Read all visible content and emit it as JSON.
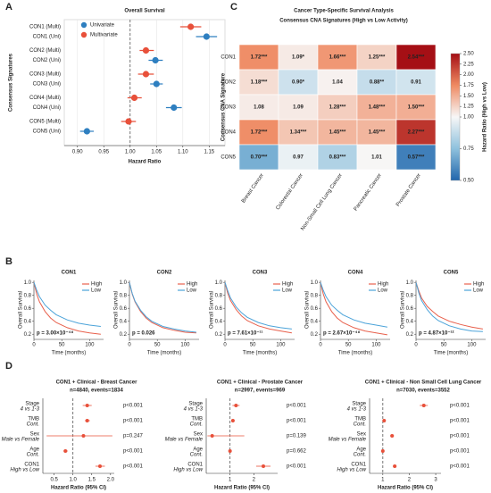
{
  "panel_labels": [
    "A",
    "B",
    "C",
    "D"
  ],
  "chart_data": [
    {
      "type": "forest",
      "title": "Overall Survival",
      "xlabel": "Hazard Ratio",
      "ylabel": "Consensus Signatures",
      "categories": [
        "CON1 (Multi)",
        "CON1 (Uni)",
        "CON2 (Multi)",
        "CON2 (Uni)",
        "CON3 (Multi)",
        "CON3 (Uni)",
        "CON4 (Multi)",
        "CON4 (Uni)",
        "CON5 (Multi)",
        "CON5 (Uni)"
      ],
      "series": [
        {
          "name": "Univariate",
          "color": "#2e7fc0",
          "values": [
            null,
            1.145,
            null,
            1.048,
            null,
            1.05,
            null,
            1.083,
            null,
            0.918
          ],
          "lower": [
            null,
            1.125,
            null,
            1.035,
            null,
            1.038,
            null,
            1.068,
            null,
            0.905
          ],
          "upper": [
            null,
            1.165,
            null,
            1.062,
            null,
            1.062,
            null,
            1.098,
            null,
            0.931
          ]
        },
        {
          "name": "Multivariate",
          "color": "#e8503a",
          "values": [
            1.115,
            null,
            1.03,
            null,
            1.03,
            null,
            1.008,
            null,
            0.997,
            null
          ],
          "lower": [
            1.095,
            null,
            1.018,
            null,
            1.015,
            null,
            0.995,
            null,
            0.983,
            null
          ],
          "upper": [
            1.135,
            null,
            1.045,
            null,
            1.045,
            null,
            1.022,
            null,
            1.011,
            null
          ]
        }
      ],
      "xlim": [
        0.875,
        1.18
      ],
      "xticks": [
        {
          "value": 0.9,
          "label": "0.90"
        },
        {
          "value": 0.95,
          "label": "0.95"
        },
        {
          "value": 1.0,
          "label": "1.00"
        },
        {
          "value": 1.05,
          "label": "1.05"
        },
        {
          "value": 1.1,
          "label": "1.10"
        },
        {
          "value": 1.15,
          "label": "1.15"
        }
      ],
      "refline": 1,
      "legend": "upper left"
    },
    {
      "type": "heatmap",
      "title": "Cancer Type-Specific Survival Analysis",
      "subtitle": "Consensus CNA Signatures (High vs Low Activity)",
      "ylabel": "Consensus CNA Signature",
      "colorbar_label": "Hazard Ratio (High vs Low)",
      "rows": [
        "CON1",
        "CON2",
        "CON3",
        "CON4",
        "CON5"
      ],
      "columns": [
        "Breast Cancer",
        "Colorectal Cancer",
        "Non-Small Cell Lung Cancer",
        "Pancreatic Cancer",
        "Prostate Cancer"
      ],
      "values": [
        [
          1.72,
          1.09,
          1.66,
          1.25,
          2.54
        ],
        [
          1.18,
          0.9,
          1.04,
          0.88,
          0.91
        ],
        [
          1.08,
          1.09,
          1.28,
          1.48,
          1.5
        ],
        [
          1.72,
          1.34,
          1.45,
          1.45,
          2.27
        ],
        [
          0.7,
          0.97,
          0.83,
          1.01,
          0.57
        ]
      ],
      "value_labels": [
        [
          "1.72***",
          "1.09*",
          "1.66***",
          "1.25***",
          "2.54***"
        ],
        [
          "1.18***",
          "0.90*",
          "1.04",
          "0.88**",
          "0.91"
        ],
        [
          "1.08",
          "1.09",
          "1.28***",
          "1.48***",
          "1.50***"
        ],
        [
          "1.72***",
          "1.34***",
          "1.45***",
          "1.45***",
          "2.27***"
        ],
        [
          "0.70***",
          "0.97",
          "0.83***",
          "1.01",
          "0.57***"
        ]
      ],
      "clim": [
        0.5,
        2.5
      ],
      "vcenter": 1,
      "colors": [
        "#2166ac",
        "#8ec1dd",
        "#f7f7f7",
        "#ef8a62",
        "#a50f15"
      ],
      "cticks": [
        {
          "value": 0.5,
          "label": "0.50"
        },
        {
          "value": 0.75,
          "label": "0.75"
        },
        {
          "value": 1.0,
          "label": "1.00"
        },
        {
          "value": 1.25,
          "label": "1.25"
        },
        {
          "value": 1.5,
          "label": "1.50"
        },
        {
          "value": 1.75,
          "label": "1.75"
        },
        {
          "value": 2.0,
          "label": "2.00"
        },
        {
          "value": 2.25,
          "label": "2.25"
        },
        {
          "value": 2.5,
          "label": "2.50"
        }
      ]
    },
    {
      "type": "km",
      "title": "CON1",
      "xlabel": "Time (months)",
      "ylabel": "Overall Survival",
      "annotation": "p = 3.00×10⁻⁴⁸",
      "x": [
        0,
        5,
        10,
        20,
        30,
        40,
        60,
        80,
        100,
        120
      ],
      "series": [
        {
          "name": "High",
          "color": "#e8604c",
          "values": [
            1,
            0.82,
            0.7,
            0.55,
            0.45,
            0.38,
            0.3,
            0.25,
            0.22,
            0.2
          ]
        },
        {
          "name": "Low",
          "color": "#4ba3d9",
          "values": [
            1,
            0.88,
            0.78,
            0.65,
            0.57,
            0.5,
            0.42,
            0.37,
            0.34,
            0.32
          ]
        }
      ],
      "xlim": [
        0,
        125
      ],
      "ylim": [
        0.12,
        1.03
      ],
      "xticks": [
        0,
        50,
        100
      ],
      "yticks": [
        0.2,
        0.4,
        0.6,
        0.8,
        {
          "value": 1,
          "label": "1.0"
        }
      ]
    },
    {
      "type": "km",
      "title": "CON2",
      "xlabel": "Time (months)",
      "ylabel": "Overall Survival",
      "annotation": "p = 0.026",
      "x": [
        0,
        5,
        10,
        20,
        30,
        40,
        60,
        80,
        100,
        120
      ],
      "series": [
        {
          "name": "High",
          "color": "#e8604c",
          "values": [
            1,
            0.82,
            0.7,
            0.55,
            0.45,
            0.38,
            0.3,
            0.26,
            0.23,
            0.22
          ]
        },
        {
          "name": "Low",
          "color": "#4ba3d9",
          "values": [
            1,
            0.83,
            0.71,
            0.57,
            0.47,
            0.4,
            0.32,
            0.28,
            0.25,
            0.23
          ]
        }
      ],
      "xlim": [
        0,
        125
      ],
      "ylim": [
        0.12,
        1.03
      ],
      "xticks": [
        0,
        50,
        100
      ],
      "yticks": [
        0.2,
        0.4,
        0.6,
        0.8,
        {
          "value": 1,
          "label": "1.0"
        }
      ]
    },
    {
      "type": "km",
      "title": "CON3",
      "xlabel": "Time (months)",
      "ylabel": "Overall Survival",
      "annotation": "p = 7.61×10⁻¹¹",
      "x": [
        0,
        5,
        10,
        20,
        30,
        40,
        60,
        80,
        100,
        120
      ],
      "series": [
        {
          "name": "High",
          "color": "#e8604c",
          "values": [
            1,
            0.83,
            0.72,
            0.58,
            0.48,
            0.41,
            0.33,
            0.28,
            0.25,
            0.22
          ]
        },
        {
          "name": "Low",
          "color": "#4ba3d9",
          "values": [
            1,
            0.87,
            0.76,
            0.62,
            0.53,
            0.46,
            0.38,
            0.33,
            0.3,
            0.28
          ]
        }
      ],
      "xlim": [
        0,
        125
      ],
      "ylim": [
        0.12,
        1.03
      ],
      "xticks": [
        0,
        50,
        100
      ],
      "yticks": [
        0.2,
        0.4,
        0.6,
        0.8,
        {
          "value": 1,
          "label": "1.0"
        }
      ]
    },
    {
      "type": "km",
      "title": "CON4",
      "xlabel": "Time (months)",
      "ylabel": "Overall Survival",
      "annotation": "p = 2.67×10⁻⁴⁸",
      "x": [
        0,
        5,
        10,
        20,
        30,
        40,
        60,
        80,
        100,
        120
      ],
      "series": [
        {
          "name": "High",
          "color": "#e8604c",
          "values": [
            1,
            0.82,
            0.7,
            0.55,
            0.45,
            0.38,
            0.3,
            0.25,
            0.22,
            0.19
          ]
        },
        {
          "name": "Low",
          "color": "#4ba3d9",
          "values": [
            1,
            0.88,
            0.78,
            0.65,
            0.57,
            0.5,
            0.42,
            0.37,
            0.34,
            0.31
          ]
        }
      ],
      "xlim": [
        0,
        125
      ],
      "ylim": [
        0.12,
        1.03
      ],
      "xticks": [
        0,
        50,
        100
      ],
      "yticks": [
        0.2,
        0.4,
        0.6,
        0.8,
        {
          "value": 1,
          "label": "1.0"
        }
      ]
    },
    {
      "type": "km",
      "title": "CON5",
      "xlabel": "Time (months)",
      "ylabel": "Overall Survival",
      "annotation": "p = 4.87×10⁻¹²",
      "x": [
        0,
        5,
        10,
        20,
        30,
        40,
        60,
        80,
        100,
        120
      ],
      "series": [
        {
          "name": "High",
          "color": "#e8604c",
          "values": [
            1,
            0.87,
            0.76,
            0.63,
            0.55,
            0.48,
            0.4,
            0.35,
            0.31,
            0.28
          ]
        },
        {
          "name": "Low",
          "color": "#4ba3d9",
          "values": [
            1,
            0.84,
            0.72,
            0.58,
            0.48,
            0.41,
            0.33,
            0.28,
            0.25,
            0.24
          ]
        }
      ],
      "xlim": [
        0,
        125
      ],
      "ylim": [
        0.12,
        1.03
      ],
      "xticks": [
        0,
        50,
        100
      ],
      "yticks": [
        0.2,
        0.4,
        0.6,
        0.8,
        {
          "value": 1,
          "label": "1.0"
        }
      ]
    },
    {
      "type": "forest",
      "title": "CON1 + Clinical - Breast Cancer",
      "subtitle": "n=4840, events=1834",
      "xlabel": "Hazard Ratio (95% CI)",
      "categories": [
        "Stage",
        "TMB",
        "Sex",
        "Age",
        "CON1"
      ],
      "sublabels": [
        "4 vs 1-3",
        "Cont.",
        "Male vs Female",
        "Cont.",
        "High vs Low"
      ],
      "p_values": [
        "p<0.001",
        "p<0.001",
        "p=0.247",
        "p<0.001",
        "p<0.001"
      ],
      "series": [
        {
          "color": "#e8503a",
          "values": [
            1.38,
            1.38,
            1.28,
            0.8,
            1.72
          ],
          "lower": [
            1.26,
            1.32,
            0.3,
            0.75,
            1.6
          ],
          "upper": [
            1.5,
            1.45,
            2.05,
            0.86,
            1.85
          ]
        }
      ],
      "xlim": [
        0.2,
        2.1
      ],
      "xticks": [
        0.5,
        {
          "value": 1,
          "label": "1.0"
        },
        1.5,
        {
          "value": 2,
          "label": "2.0"
        }
      ],
      "refline": 1
    },
    {
      "type": "forest",
      "title": "CON1 + Clinical - Prostate Cancer",
      "subtitle": "n=2997, events=969",
      "xlabel": "Hazard Ratio (95% CI)",
      "categories": [
        "Stage",
        "TMB",
        "Sex",
        "Age",
        "CON1"
      ],
      "sublabels": [
        "4 vs 1-3",
        "Cont.",
        "Male vs Female",
        "Cont.",
        "High vs Low"
      ],
      "p_values": [
        "p<0.001",
        "p<0.001",
        "p=0.139",
        "p=0.662",
        "p<0.001"
      ],
      "series": [
        {
          "color": "#e8503a",
          "values": [
            1.25,
            1.12,
            0.25,
            1.0,
            2.4
          ],
          "lower": [
            1.1,
            1.05,
            0.05,
            0.97,
            2.1
          ],
          "upper": [
            1.4,
            1.2,
            1.6,
            1.03,
            2.7
          ]
        }
      ],
      "xlim": [
        0,
        3
      ],
      "xticks": [
        1,
        2
      ],
      "refline": 1
    },
    {
      "type": "forest",
      "title": "CON1 + Clinical - Non Small Cell Lung Cancer",
      "subtitle": "n=7030, events=3552",
      "xlabel": "Hazard Ratio (95% CI)",
      "categories": [
        "Stage",
        "TMB",
        "Sex",
        "Age",
        "CON1"
      ],
      "sublabels": [
        "4 vs 1-3",
        "Cont.",
        "Male vs Female",
        "Cont.",
        "High vs Low"
      ],
      "p_values": [
        "p<0.001",
        "p<0.001",
        "p<0.001",
        "p<0.001",
        "p<0.001"
      ],
      "series": [
        {
          "color": "#e8503a",
          "values": [
            2.55,
            1.05,
            1.35,
            1.0,
            1.45
          ],
          "lower": [
            2.4,
            1.0,
            1.28,
            0.98,
            1.38
          ],
          "upper": [
            2.7,
            1.1,
            1.42,
            1.02,
            1.52
          ]
        }
      ],
      "xlim": [
        0.5,
        3.2
      ],
      "xticks": [
        1,
        2,
        3
      ],
      "refline": 1
    }
  ]
}
